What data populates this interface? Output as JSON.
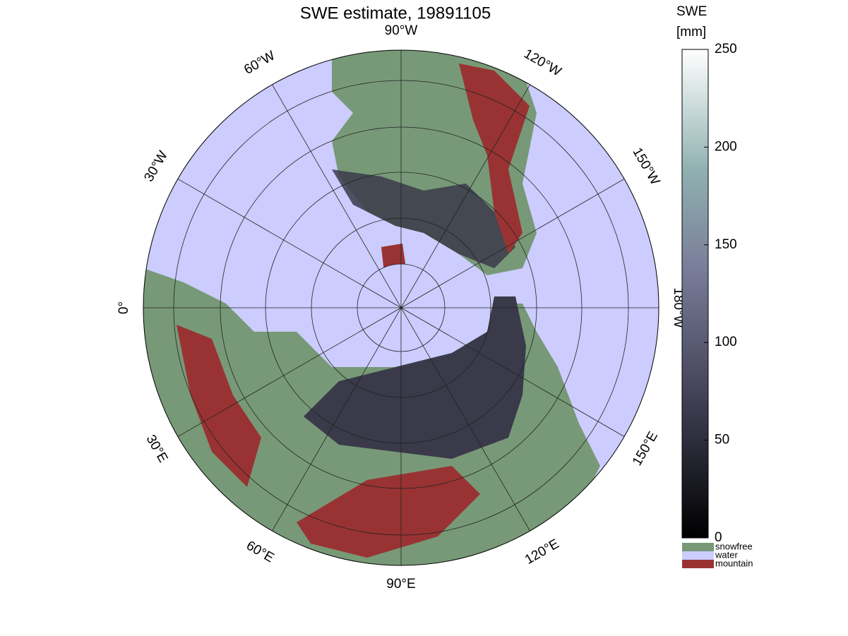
{
  "title": "SWE estimate, 19891105",
  "longitude_labels": [
    "90°W",
    "120°W",
    "150°W",
    "180°W",
    "150°E",
    "120°E",
    "90°E",
    "60°E",
    "30°E",
    "0°",
    "30°W",
    "60°W"
  ],
  "colorbar": {
    "title": [
      "SWE",
      "[mm]"
    ],
    "lim": [
      0,
      250
    ],
    "ticks": [
      0,
      50,
      100,
      150,
      200,
      250
    ]
  },
  "legend": [
    {
      "label": "snowfree",
      "color": "#779977"
    },
    {
      "label": "water",
      "color": "#ccccff"
    },
    {
      "label": "mountain",
      "color": "#993333"
    }
  ]
}
